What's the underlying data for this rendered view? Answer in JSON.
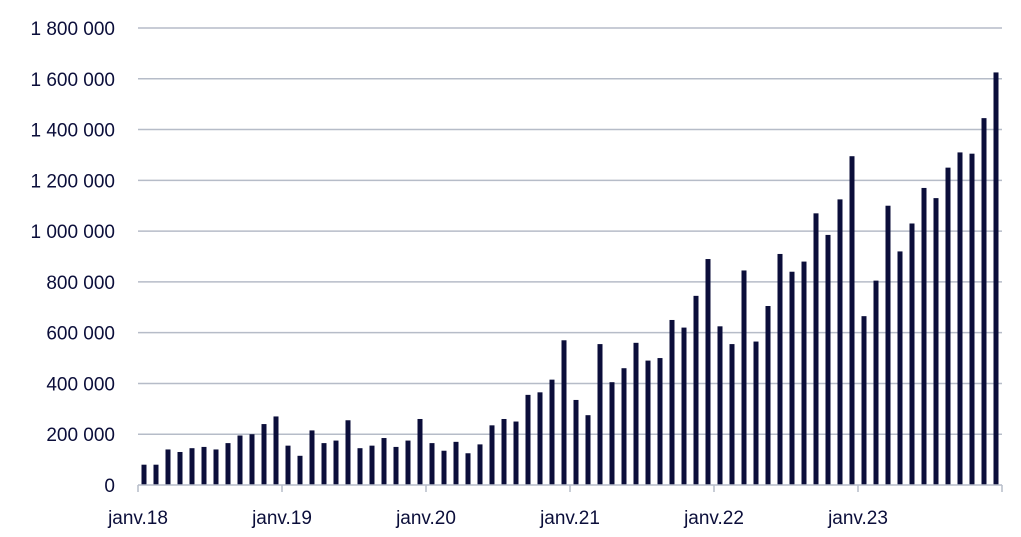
{
  "chart_data": {
    "type": "bar",
    "title": "",
    "xlabel": "",
    "ylabel": "",
    "ylim": [
      0,
      1800000
    ],
    "yticks": [
      0,
      200000,
      400000,
      600000,
      800000,
      1000000,
      1200000,
      1400000,
      1600000,
      1800000
    ],
    "ytick_labels": [
      "0",
      "200 000",
      "400 000",
      "600 000",
      "800 000",
      "1 000 000",
      "1 200 000",
      "1 400 000",
      "1 600 000",
      "1 800 000"
    ],
    "xtick_labels": [
      {
        "label": "janv.18",
        "category": "2018-01"
      },
      {
        "label": "janv.19",
        "category": "2019-01"
      },
      {
        "label": "janv.20",
        "category": "2020-01"
      },
      {
        "label": "janv.21",
        "category": "2021-01"
      },
      {
        "label": "janv.22",
        "category": "2022-01"
      },
      {
        "label": "janv.23",
        "category": "2023-01"
      }
    ],
    "grid": true,
    "bar_color": "#0b0e3a",
    "categories": [
      "2018-01",
      "2018-02",
      "2018-03",
      "2018-04",
      "2018-05",
      "2018-06",
      "2018-07",
      "2018-08",
      "2018-09",
      "2018-10",
      "2018-11",
      "2018-12",
      "2019-01",
      "2019-02",
      "2019-03",
      "2019-04",
      "2019-05",
      "2019-06",
      "2019-07",
      "2019-08",
      "2019-09",
      "2019-10",
      "2019-11",
      "2019-12",
      "2020-01",
      "2020-02",
      "2020-03",
      "2020-04",
      "2020-05",
      "2020-06",
      "2020-07",
      "2020-08",
      "2020-09",
      "2020-10",
      "2020-11",
      "2020-12",
      "2021-01",
      "2021-02",
      "2021-03",
      "2021-04",
      "2021-05",
      "2021-06",
      "2021-07",
      "2021-08",
      "2021-09",
      "2021-10",
      "2021-11",
      "2021-12",
      "2022-01",
      "2022-02",
      "2022-03",
      "2022-04",
      "2022-05",
      "2022-06",
      "2022-07",
      "2022-08",
      "2022-09",
      "2022-10",
      "2022-11",
      "2022-12",
      "2023-01",
      "2023-02",
      "2023-03",
      "2023-04",
      "2023-05",
      "2023-06",
      "2023-07",
      "2023-08",
      "2023-09",
      "2023-10",
      "2023-11",
      "2023-12"
    ],
    "values": [
      80000,
      80000,
      140000,
      130000,
      145000,
      150000,
      140000,
      165000,
      195000,
      200000,
      240000,
      270000,
      155000,
      115000,
      215000,
      165000,
      175000,
      255000,
      145000,
      155000,
      185000,
      150000,
      175000,
      260000,
      165000,
      135000,
      170000,
      125000,
      160000,
      235000,
      260000,
      250000,
      355000,
      365000,
      415000,
      570000,
      335000,
      275000,
      555000,
      405000,
      460000,
      560000,
      490000,
      500000,
      650000,
      620000,
      745000,
      890000,
      625000,
      555000,
      845000,
      565000,
      705000,
      910000,
      840000,
      880000,
      1070000,
      985000,
      1125000,
      1295000,
      665000,
      805000,
      1100000,
      920000,
      1030000,
      1170000,
      1130000,
      1250000,
      1310000,
      1305000,
      1445000,
      1625000
    ]
  }
}
